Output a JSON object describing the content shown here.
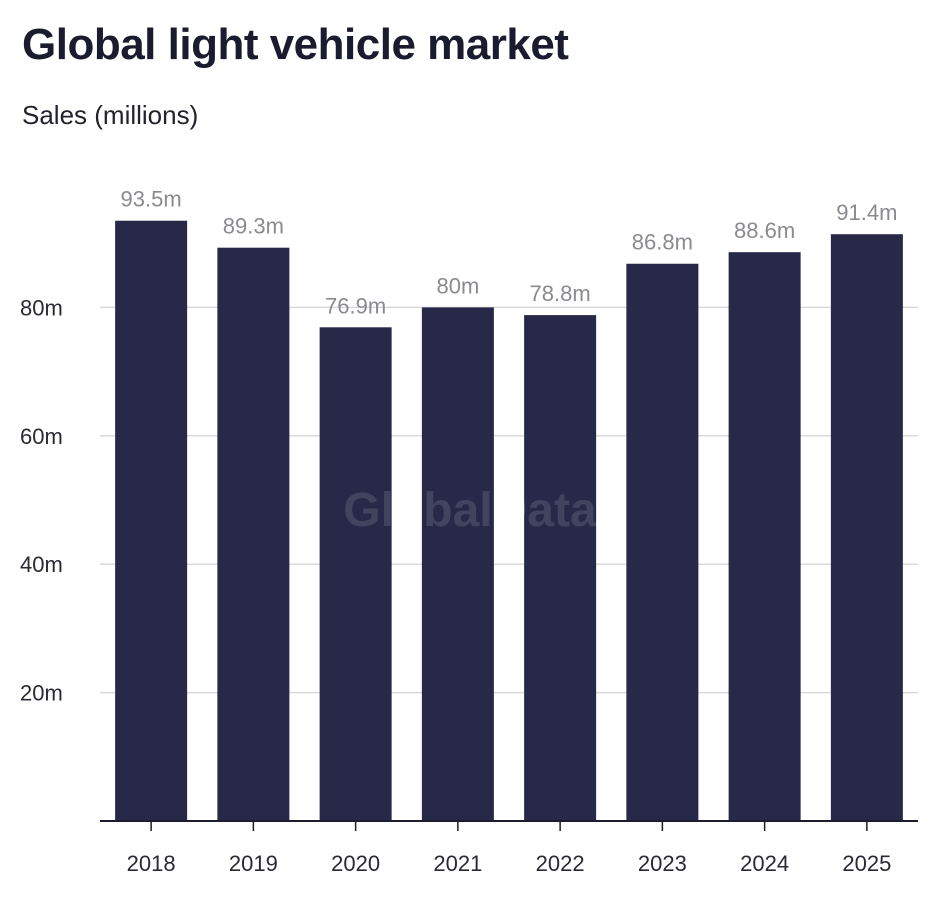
{
  "chart_data": {
    "type": "bar",
    "title": "Global light vehicle market",
    "subtitle": "Sales (millions)",
    "categories": [
      "2018",
      "2019",
      "2020",
      "2021",
      "2022",
      "2023",
      "2024",
      "2025"
    ],
    "values": [
      93.5,
      89.3,
      76.9,
      80,
      78.8,
      86.8,
      88.6,
      91.4
    ],
    "data_labels": [
      "93.5m",
      "89.3m",
      "76.9m",
      "80m",
      "78.8m",
      "86.8m",
      "88.6m",
      "91.4m"
    ],
    "yticks": [
      20,
      40,
      60,
      80
    ],
    "ytick_labels": [
      "20m",
      "40m",
      "60m",
      "80m"
    ],
    "ylim": [
      0,
      100
    ],
    "grid": true,
    "legend": "none",
    "bar_color": "#282849",
    "grid_color": "#d9d9d9",
    "watermark": "GlobalData"
  }
}
